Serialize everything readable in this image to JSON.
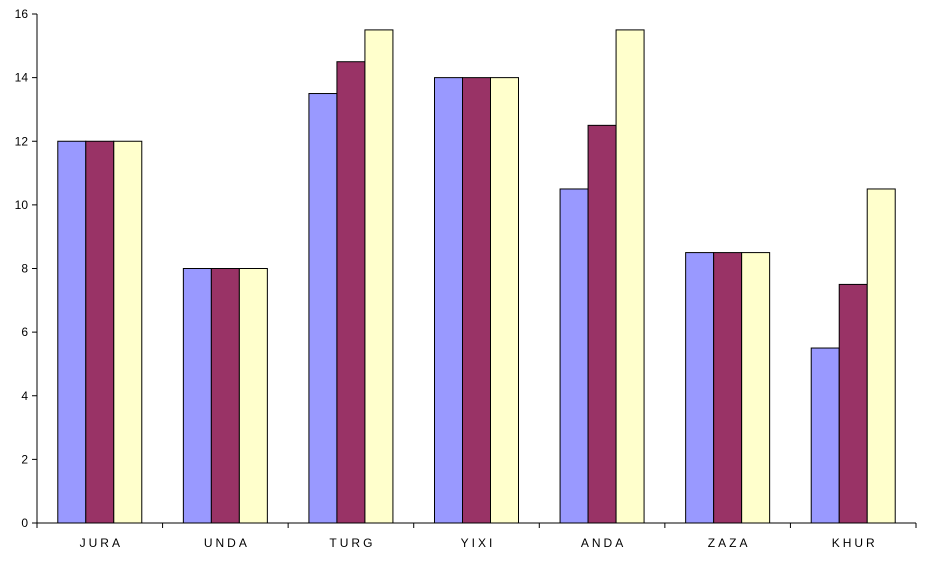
{
  "chart_data": {
    "type": "bar",
    "title": "",
    "xlabel": "",
    "ylabel": "",
    "categories": [
      "JURA",
      "UNDA",
      "TURG",
      "YIXI",
      "ANDA",
      "ZAZA",
      "KHUR"
    ],
    "series": [
      {
        "color": "#9999ff",
        "values": [
          12,
          8,
          13.5,
          14,
          10.5,
          8.5,
          5.5
        ]
      },
      {
        "color": "#993366",
        "values": [
          12,
          8,
          14.5,
          14,
          12.5,
          8.5,
          7.5
        ]
      },
      {
        "color": "#ffffcc",
        "values": [
          12,
          8,
          15.5,
          14,
          15.5,
          8.5,
          10.5
        ]
      }
    ],
    "ylim": [
      0,
      16
    ],
    "yticks": [
      0,
      2,
      4,
      6,
      8,
      10,
      12,
      14,
      16
    ],
    "grid": false,
    "legend": "none"
  }
}
